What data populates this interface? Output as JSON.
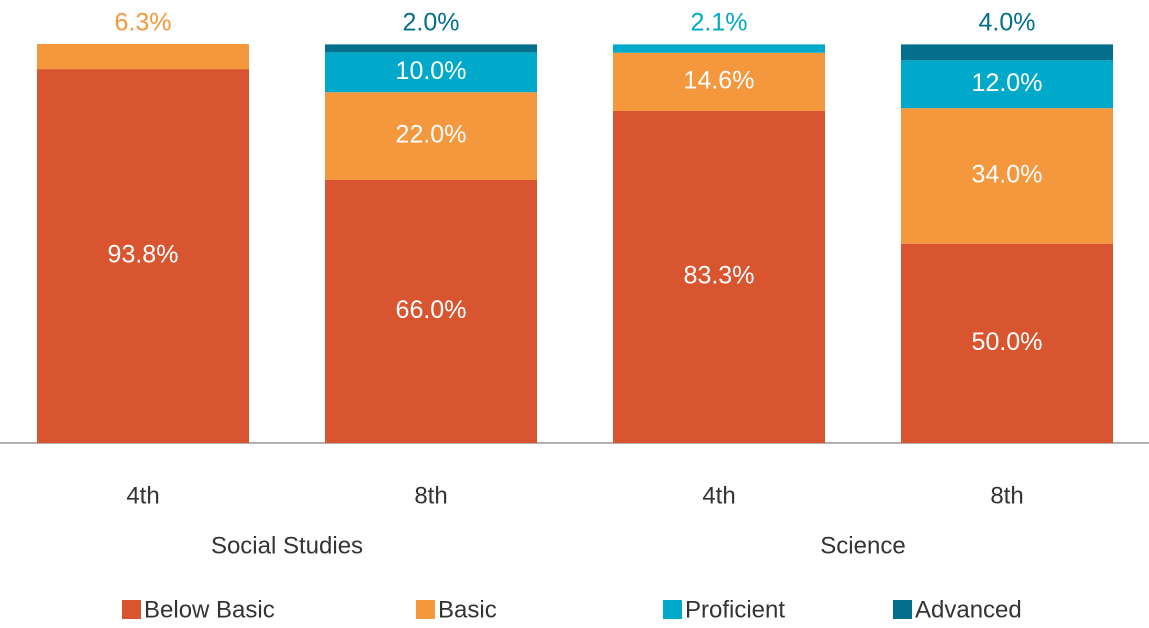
{
  "chart_data": {
    "type": "stacked_bar",
    "categories": [
      "4th",
      "8th",
      "4th",
      "8th"
    ],
    "groups": [
      "Social Studies",
      "Science"
    ],
    "series": [
      {
        "name": "Below Basic",
        "color": "#d95530",
        "values": [
          93.8,
          66.0,
          83.3,
          50.0
        ],
        "value_labels": [
          "93.8%",
          "66.0%",
          "83.3%",
          "50.0%"
        ]
      },
      {
        "name": "Basic",
        "color": "#f5973d",
        "values": [
          6.3,
          22.0,
          14.6,
          34.0
        ],
        "value_labels": [
          "6.3%",
          "22.0%",
          "14.6%",
          "34.0%"
        ]
      },
      {
        "name": "Proficient",
        "color": "#00a9c9",
        "values": [
          null,
          10.0,
          2.1,
          12.0
        ],
        "value_labels": [
          null,
          "10.0%",
          "2.1%",
          "12.0%"
        ]
      },
      {
        "name": "Advanced",
        "color": "#036f8c",
        "values": [
          null,
          2.0,
          null,
          4.0
        ],
        "value_labels": [
          null,
          "2.0%",
          null,
          "4.0%"
        ]
      }
    ],
    "legend": "bottom"
  }
}
